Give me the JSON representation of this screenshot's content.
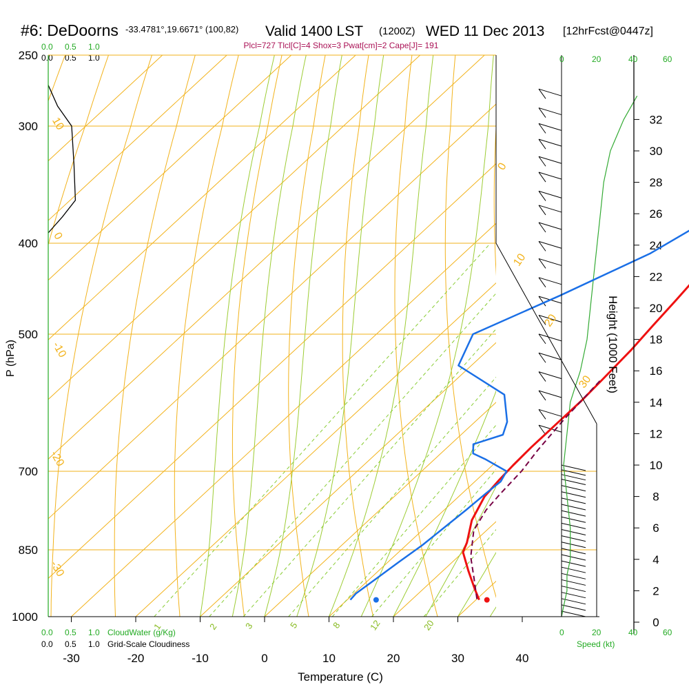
{
  "header": {
    "station": "#6: DeDoorns",
    "coords": "-33.4781°,19.6671° (100,82)",
    "valid_main": "Valid 1400 LST",
    "valid_utc": "(1200Z)",
    "date": "WED 11 Dec 2013",
    "forecast": "[12hrFcst@0447z]",
    "indices": "Plcl=727 Tlcl[C]=4 Shox=3 Pwat[cm]=2 Cape[J]= 191"
  },
  "colors": {
    "temperature": "#ee1111",
    "dewpoint": "#1a6fe6",
    "parcel": "#770044",
    "isobar_isotherm": "#f2b21a",
    "moist_adiabat": "#9ccc33",
    "mixing_ratio": "#88cc33",
    "cloud_axis": "#22aa22",
    "wind_barb": "#000000"
  },
  "cloud_scale": {
    "top_green": [
      "0.0",
      "0.5",
      "1.0"
    ],
    "top_black": [
      "0.0",
      "0.5",
      "1.0"
    ],
    "bottom_green": [
      "0.0",
      "0.5",
      "1.0"
    ],
    "bottom_black": [
      "0.0",
      "0.5",
      "1.0"
    ],
    "cloud_water_label": "CloudWater (g/Kg)",
    "cloudiness_label": "Grid-Scale Cloudiness"
  },
  "speed_axis": {
    "ticks": [
      "0",
      "20",
      "40",
      "60"
    ],
    "label": "Speed (kt)"
  },
  "chart_data": {
    "type": "line",
    "title": "",
    "xlabel": "Temperature (C)",
    "ylabel": "P (hPa)",
    "y2label": "Height (1000 Feet)",
    "x_ticks": [
      "-30",
      "-20",
      "-10",
      "0",
      "10",
      "20",
      "30",
      "40"
    ],
    "pressure_ticks": [
      "250",
      "300",
      "400",
      "500",
      "700",
      "850",
      "1000"
    ],
    "height_ticks": [
      "0",
      "2",
      "4",
      "6",
      "8",
      "10",
      "12",
      "14",
      "16",
      "18",
      "20",
      "22",
      "24",
      "26",
      "28",
      "30",
      "32"
    ],
    "adiabat_labels": [
      {
        "text": "0",
        "pos": "upper right"
      },
      {
        "text": "10",
        "pos": "upper right"
      },
      {
        "text": "20",
        "pos": "right"
      },
      {
        "text": "30",
        "pos": "right"
      },
      {
        "text": "10",
        "pos": "left"
      },
      {
        "text": "0",
        "pos": "left"
      },
      {
        "text": "-10",
        "pos": "left"
      },
      {
        "text": "-20",
        "pos": "left"
      },
      {
        "text": "-30",
        "pos": "left"
      }
    ],
    "mixing_ratio_labels": [
      "1",
      "2",
      "3",
      "5",
      "8",
      "12",
      "20"
    ],
    "series": [
      {
        "key": "temperature",
        "points": [
          [
            30.5,
            960
          ],
          [
            28,
            935
          ],
          [
            24,
            895
          ],
          [
            20,
            855
          ],
          [
            19,
            835
          ],
          [
            16,
            790
          ],
          [
            14,
            745
          ],
          [
            13.5,
            715
          ],
          [
            13.2,
            690
          ],
          [
            13,
            660
          ],
          [
            13,
            620
          ],
          [
            13,
            590
          ],
          [
            12.7,
            560
          ],
          [
            12.2,
            520
          ],
          [
            11.5,
            490
          ],
          [
            10.8,
            460
          ],
          [
            10,
            430
          ],
          [
            9,
            400
          ],
          [
            7.8,
            370
          ],
          [
            6.3,
            345
          ],
          [
            4.5,
            320
          ],
          [
            2.6,
            300
          ],
          [
            1,
            283
          ],
          [
            -0.5,
            268
          ],
          [
            -1.5,
            256
          ],
          [
            -3,
            249
          ]
        ]
      },
      {
        "key": "dewpoint",
        "points": [
          [
            10.5,
            960
          ],
          [
            10.3,
            945
          ],
          [
            11,
            910
          ],
          [
            11.7,
            875
          ],
          [
            12.5,
            840
          ],
          [
            13,
            800
          ],
          [
            13.4,
            770
          ],
          [
            13.7,
            740
          ],
          [
            14,
            718
          ],
          [
            13.2,
            700
          ],
          [
            8,
            680
          ],
          [
            5,
            670
          ],
          [
            3.5,
            655
          ],
          [
            6.5,
            640
          ],
          [
            5,
            620
          ],
          [
            0,
            580
          ],
          [
            -12,
            540
          ],
          [
            -15,
            500
          ],
          [
            -8,
            455
          ],
          [
            -1,
            410
          ],
          [
            2,
            380
          ],
          [
            2,
            355
          ],
          [
            0,
            330
          ],
          [
            -2,
            310
          ],
          [
            -3.8,
            295
          ],
          [
            -6.5,
            276
          ],
          [
            -7.5,
            260
          ],
          [
            -8,
            250
          ]
        ]
      },
      {
        "key": "parcel",
        "points": [
          [
            30,
            958
          ],
          [
            26,
            910
          ],
          [
            22,
            865
          ],
          [
            18,
            810
          ],
          [
            16.5,
            770
          ],
          [
            16,
            740
          ],
          [
            15.5,
            700
          ],
          [
            14.5,
            665
          ],
          [
            13.5,
            620
          ],
          [
            13,
            590
          ],
          [
            12.5,
            560
          ]
        ]
      },
      {
        "key": "cloudiness",
        "points": [
          [
            0.0,
            270
          ],
          [
            0.2,
            285
          ],
          [
            0.5,
            300
          ],
          [
            0.55,
            330
          ],
          [
            0.58,
            360
          ],
          [
            0.3,
            375
          ],
          [
            0.0,
            390
          ]
        ]
      }
    ],
    "markers": [
      {
        "key": "surface_temperature",
        "temp": 31.7,
        "pres": 960
      },
      {
        "key": "surface_dewpoint",
        "temp": 14.5,
        "pres": 960
      }
    ],
    "wind_speed_profile": [
      [
        1,
        0
      ],
      [
        2,
        1
      ],
      [
        3,
        1
      ],
      [
        4,
        2
      ],
      [
        6,
        2
      ],
      [
        8,
        1
      ],
      [
        10,
        0
      ],
      [
        12,
        1
      ],
      [
        14,
        2
      ],
      [
        16,
        5
      ],
      [
        18,
        7
      ],
      [
        20,
        8
      ],
      [
        22,
        9
      ],
      [
        24,
        10
      ],
      [
        26,
        11
      ],
      [
        28,
        12
      ],
      [
        30,
        14
      ],
      [
        32,
        18
      ],
      [
        33.5,
        22
      ]
    ],
    "wind_barbs": {
      "upper_height_kft": [
        33.5,
        32.3,
        31.3,
        30.3,
        29.2,
        28.2,
        27,
        26.1,
        25,
        23.8,
        22.7,
        21.5,
        20.3,
        19.1,
        17.9,
        16.7,
        15.5,
        14.3,
        13.1,
        12.1
      ],
      "lower_height_kft": [
        10,
        9.7,
        9.4,
        9.1,
        8.7,
        8.3,
        7.9,
        7.5,
        7.1,
        6.7,
        6.3,
        5.9,
        5.5,
        5.1,
        4.7,
        4.3,
        3.9,
        3.5,
        3.1,
        2.7,
        2.3,
        1.9,
        1.5,
        1.1,
        0.7
      ]
    }
  }
}
